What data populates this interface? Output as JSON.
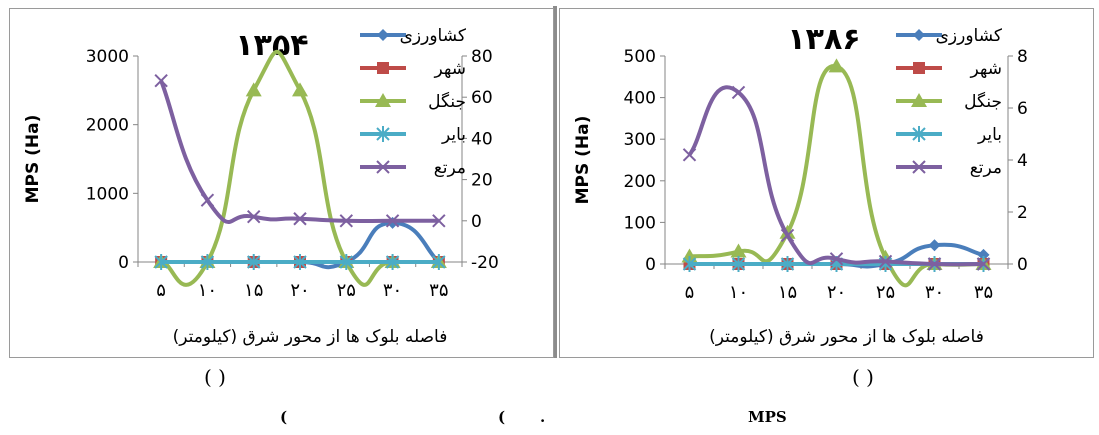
{
  "chart_data": [
    {
      "type": "line",
      "title": "۱۳۵۴",
      "ylabel": "MPS (Ha)",
      "xlabel": "فاصله بلوک ها از محور شرق (کیلومتر)",
      "categories": [
        "۵",
        "۱۰",
        "۱۵",
        "۲۰",
        "۲۵",
        "۳۰",
        "۳۵"
      ],
      "ylim": [
        0,
        3000
      ],
      "yticks": [
        "0",
        "1000",
        "2000",
        "3000"
      ],
      "y2lim": [
        -20,
        80
      ],
      "y2ticks": [
        "-20",
        "0",
        "20",
        "40",
        "60",
        "80"
      ],
      "legend_position": "right",
      "series": [
        {
          "name": "کشاورزی",
          "color": "#4a7ebb",
          "marker": "diamond",
          "axis": "left",
          "smooth": true,
          "values": [
            0,
            0,
            0,
            0,
            0,
            570,
            0
          ]
        },
        {
          "name": "شهر",
          "color": "#be4b48",
          "marker": "square",
          "axis": "left",
          "smooth": false,
          "values": [
            0,
            0,
            0,
            0,
            0,
            0,
            0
          ]
        },
        {
          "name": "جنگل",
          "color": "#98b954",
          "marker": "triangle",
          "axis": "left",
          "smooth": true,
          "values": [
            0,
            0,
            2500,
            2500,
            0,
            0,
            0
          ]
        },
        {
          "name": "بایر",
          "color": "#4bacc6",
          "marker": "asterisk",
          "axis": "left",
          "smooth": false,
          "values": [
            0,
            0,
            0,
            0,
            0,
            0,
            0
          ]
        },
        {
          "name": "مرتع",
          "color": "#7d60a0",
          "marker": "cross",
          "axis": "right",
          "smooth": true,
          "values": [
            68,
            10,
            2,
            1,
            0,
            0,
            0
          ]
        }
      ]
    },
    {
      "type": "line",
      "title": "۱۳۸۶",
      "ylabel": "MPS (Ha)",
      "xlabel": "فاصله بلوک ها از محور شرق (کیلومتر)",
      "categories": [
        "۵",
        "۱۰",
        "۱۵",
        "۲۰",
        "۲۵",
        "۳۰",
        "۳۵"
      ],
      "ylim": [
        0,
        500
      ],
      "yticks": [
        "0",
        "100",
        "200",
        "300",
        "400",
        "500"
      ],
      "y2lim": [
        0,
        8
      ],
      "y2ticks": [
        "0",
        "2",
        "4",
        "6",
        "8"
      ],
      "legend_position": "right",
      "series": [
        {
          "name": "کشاورزی",
          "color": "#4a7ebb",
          "marker": "diamond",
          "axis": "left",
          "smooth": true,
          "values": [
            0,
            0,
            0,
            0,
            0,
            45,
            22
          ]
        },
        {
          "name": "شهر",
          "color": "#be4b48",
          "marker": "square",
          "axis": "left",
          "smooth": false,
          "values": [
            0,
            0,
            0,
            0,
            0,
            0,
            0
          ]
        },
        {
          "name": "جنگل",
          "color": "#98b954",
          "marker": "triangle",
          "axis": "left",
          "smooth": true,
          "values": [
            18,
            30,
            75,
            475,
            15,
            0,
            0
          ]
        },
        {
          "name": "بایر",
          "color": "#4bacc6",
          "marker": "asterisk",
          "axis": "left",
          "smooth": false,
          "values": [
            0,
            0,
            0,
            0,
            0,
            0,
            0
          ]
        },
        {
          "name": "مرتع",
          "color": "#7d60a0",
          "marker": "cross",
          "axis": "right",
          "smooth": true,
          "values": [
            4.2,
            6.6,
            1.1,
            0.2,
            0.1,
            0,
            0
          ]
        }
      ]
    }
  ],
  "below_labels": [
    "( )",
    "( )"
  ],
  "caption": {
    "left_paren": "(",
    "middle_paren": "(",
    "dot": ".",
    "mps": "MPS"
  }
}
